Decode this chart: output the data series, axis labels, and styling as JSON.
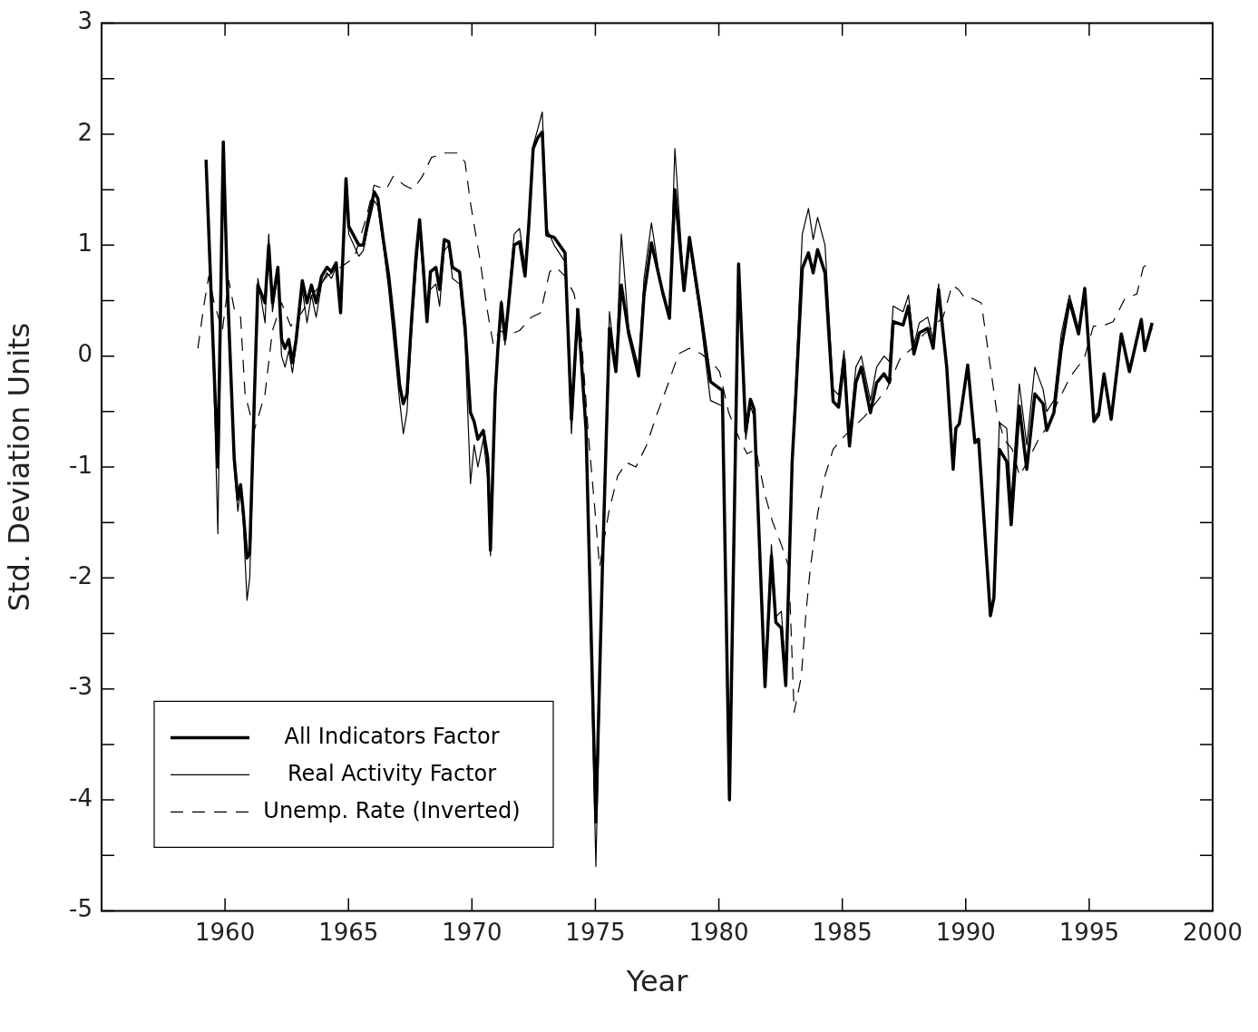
{
  "chart_data": {
    "type": "line",
    "xlabel": "Year",
    "ylabel": "Std. Deviation Units",
    "xlim": [
      1955,
      2000
    ],
    "xticks": [
      1960,
      1965,
      1970,
      1975,
      1980,
      1985,
      1990,
      1995,
      2000
    ],
    "ylim": [
      -5,
      3
    ],
    "yticks": [
      -5,
      {
        "value": -4.5,
        "label": null
      },
      -4,
      {
        "value": -3.5,
        "label": null
      },
      -3,
      {
        "value": -2.5,
        "label": null
      },
      -2,
      {
        "value": -1.5,
        "label": null
      },
      -1,
      {
        "value": -0.5,
        "label": null
      },
      0,
      {
        "value": 0.5,
        "label": null
      },
      1,
      {
        "value": 1.5,
        "label": null
      },
      2,
      {
        "value": 2.5,
        "label": null
      },
      3
    ],
    "grid": false,
    "legend": "bottom left",
    "marker": "none",
    "series": [
      {
        "name": "All Indicators Factor",
        "color": "#000000",
        "line_style": "solid",
        "x": [
          1959.23,
          1959.45,
          1959.71,
          1959.93,
          1960.08,
          1960.37,
          1960.52,
          1960.63,
          1960.74,
          1960.89,
          1961.0,
          1961.18,
          1961.33,
          1961.62,
          1961.77,
          1961.92,
          1962.14,
          1962.29,
          1962.43,
          1962.58,
          1962.73,
          1962.88,
          1963.13,
          1963.32,
          1963.5,
          1963.69,
          1963.91,
          1964.13,
          1964.31,
          1964.5,
          1964.68,
          1964.9,
          1965.01,
          1965.42,
          1965.6,
          1965.78,
          1966.04,
          1966.19,
          1966.41,
          1966.63,
          1966.85,
          1967.07,
          1967.22,
          1967.37,
          1967.55,
          1967.73,
          1967.88,
          1968.03,
          1968.18,
          1968.32,
          1968.54,
          1968.69,
          1968.88,
          1969.06,
          1969.21,
          1969.5,
          1969.72,
          1969.94,
          1970.09,
          1970.24,
          1970.46,
          1970.64,
          1970.75,
          1970.94,
          1971.05,
          1971.19,
          1971.34,
          1971.49,
          1971.71,
          1971.93,
          1972.15,
          1972.3,
          1972.48,
          1972.67,
          1972.85,
          1973.03,
          1973.33,
          1973.77,
          1974.03,
          1974.29,
          1974.62,
          1975.02,
          1975.28,
          1975.57,
          1975.83,
          1976.05,
          1976.35,
          1976.75,
          1976.97,
          1977.27,
          1977.71,
          1978.0,
          1978.22,
          1978.59,
          1978.81,
          1979.25,
          1979.66,
          1980.14,
          1980.43,
          1980.8,
          1981.09,
          1981.28,
          1981.43,
          1981.87,
          1982.13,
          1982.31,
          1982.53,
          1982.71,
          1982.97,
          1983.12,
          1983.38,
          1983.63,
          1983.82,
          1984.0,
          1984.3,
          1984.63,
          1984.85,
          1985.07,
          1985.29,
          1985.55,
          1985.77,
          1986.14,
          1986.39,
          1986.69,
          1986.91,
          1987.06,
          1987.46,
          1987.68,
          1987.9,
          1988.12,
          1988.46,
          1988.68,
          1988.9,
          1989.23,
          1989.49,
          1989.6,
          1989.74,
          1990.08,
          1990.37,
          1990.52,
          1991.0,
          1991.14,
          1991.36,
          1991.66,
          1991.84,
          1992.17,
          1992.47,
          1992.8,
          1993.13,
          1993.28,
          1993.57,
          1993.87,
          1994.2,
          1994.57,
          1994.82,
          1995.19,
          1995.38,
          1995.6,
          1995.89,
          1996.3,
          1996.63,
          1997.11,
          1997.25,
          1997.55
        ],
        "values": [
          1.77,
          0.48,
          -1.0,
          1.93,
          0.72,
          -0.92,
          -1.29,
          -1.16,
          -1.41,
          -1.82,
          -1.78,
          -0.43,
          0.64,
          0.48,
          1.0,
          0.48,
          0.8,
          0.15,
          0.07,
          0.15,
          -0.06,
          0.15,
          0.68,
          0.48,
          0.64,
          0.48,
          0.72,
          0.8,
          0.76,
          0.84,
          0.39,
          1.6,
          1.17,
          1.0,
          1.0,
          1.21,
          1.48,
          1.42,
          1.05,
          0.72,
          0.27,
          -0.26,
          -0.43,
          -0.34,
          0.31,
          0.89,
          1.23,
          0.8,
          0.31,
          0.76,
          0.8,
          0.6,
          1.05,
          1.03,
          0.8,
          0.76,
          0.27,
          -0.51,
          -0.59,
          -0.75,
          -0.67,
          -0.92,
          -1.75,
          -0.34,
          0.07,
          0.48,
          0.15,
          0.48,
          1.0,
          1.03,
          0.72,
          1.17,
          1.87,
          1.97,
          2.02,
          1.09,
          1.07,
          0.93,
          -0.57,
          0.42,
          -0.66,
          -4.2,
          -1.95,
          0.25,
          -0.14,
          0.64,
          0.2,
          -0.18,
          0.55,
          1.02,
          0.59,
          0.34,
          1.5,
          0.59,
          1.07,
          0.42,
          -0.23,
          -0.31,
          -4.0,
          0.83,
          -0.68,
          -0.39,
          -0.48,
          -2.98,
          -1.8,
          -2.4,
          -2.45,
          -2.97,
          -0.95,
          -0.34,
          0.79,
          0.93,
          0.75,
          0.96,
          0.75,
          -0.41,
          -0.46,
          -0.03,
          -0.81,
          -0.24,
          -0.1,
          -0.51,
          -0.24,
          -0.16,
          -0.24,
          0.31,
          0.28,
          0.45,
          0.02,
          0.21,
          0.25,
          0.07,
          0.6,
          -0.1,
          -1.02,
          -0.65,
          -0.61,
          -0.08,
          -0.78,
          -0.75,
          -2.34,
          -2.18,
          -0.84,
          -0.95,
          -1.52,
          -0.45,
          -1.02,
          -0.34,
          -0.43,
          -0.67,
          -0.51,
          0.07,
          0.5,
          0.2,
          0.61,
          -0.59,
          -0.53,
          -0.16,
          -0.57,
          0.2,
          -0.14,
          0.33,
          0.05,
          0.3
        ]
      },
      {
        "name": "Real Activity Factor",
        "color": "#000000",
        "line_style": "solid",
        "x": [
          1959.23,
          1959.45,
          1959.71,
          1959.93,
          1960.08,
          1960.37,
          1960.52,
          1960.63,
          1960.74,
          1960.89,
          1961.0,
          1961.18,
          1961.33,
          1961.62,
          1961.77,
          1961.92,
          1962.14,
          1962.29,
          1962.43,
          1962.58,
          1962.73,
          1962.88,
          1963.13,
          1963.32,
          1963.5,
          1963.69,
          1963.91,
          1964.13,
          1964.31,
          1964.5,
          1964.68,
          1964.9,
          1965.01,
          1965.42,
          1965.6,
          1965.78,
          1966.04,
          1966.19,
          1966.41,
          1966.63,
          1966.85,
          1967.07,
          1967.22,
          1967.37,
          1967.55,
          1967.73,
          1967.88,
          1968.03,
          1968.18,
          1968.32,
          1968.54,
          1968.69,
          1968.88,
          1969.06,
          1969.21,
          1969.5,
          1969.72,
          1969.94,
          1970.09,
          1970.24,
          1970.46,
          1970.64,
          1970.75,
          1970.94,
          1971.05,
          1971.19,
          1971.34,
          1971.49,
          1971.71,
          1971.93,
          1972.15,
          1972.3,
          1972.48,
          1972.67,
          1972.85,
          1973.03,
          1973.33,
          1973.77,
          1974.03,
          1974.29,
          1974.62,
          1975.02,
          1975.28,
          1975.57,
          1975.83,
          1976.05,
          1976.35,
          1976.75,
          1976.97,
          1977.27,
          1977.71,
          1978.0,
          1978.22,
          1978.59,
          1978.81,
          1979.25,
          1979.66,
          1980.14,
          1980.43,
          1980.8,
          1981.09,
          1981.28,
          1981.43,
          1981.87,
          1982.13,
          1982.31,
          1982.53,
          1982.71,
          1982.97,
          1983.12,
          1983.38,
          1983.63,
          1983.82,
          1984.0,
          1984.3,
          1984.63,
          1984.85,
          1985.07,
          1985.29,
          1985.55,
          1985.77,
          1986.14,
          1986.39,
          1986.69,
          1986.91,
          1987.06,
          1987.46,
          1987.68,
          1987.9,
          1988.12,
          1988.46,
          1988.68,
          1988.9,
          1989.23,
          1989.49,
          1989.6,
          1989.74,
          1990.08,
          1990.37,
          1990.52,
          1991.0,
          1991.14,
          1991.36,
          1991.66,
          1991.84,
          1992.17,
          1992.47,
          1992.8,
          1993.13,
          1993.28,
          1993.57,
          1993.87,
          1994.2,
          1994.57,
          1994.82,
          1995.19,
          1995.38,
          1995.6,
          1995.89,
          1996.3,
          1996.63,
          1997.11,
          1997.25,
          1997.55
        ],
        "values": [
          1.7,
          0.6,
          -1.6,
          1.85,
          0.6,
          -1.0,
          -1.4,
          -1.2,
          -1.5,
          -2.2,
          -2.0,
          -0.6,
          0.7,
          0.3,
          1.1,
          0.4,
          0.75,
          0.0,
          -0.1,
          0.05,
          -0.15,
          0.1,
          0.6,
          0.3,
          0.55,
          0.35,
          0.65,
          0.75,
          0.7,
          0.8,
          0.45,
          1.5,
          1.1,
          0.9,
          0.95,
          1.15,
          1.4,
          1.35,
          1.0,
          0.6,
          0.1,
          -0.4,
          -0.7,
          -0.5,
          0.2,
          0.75,
          1.15,
          0.7,
          0.45,
          0.6,
          0.65,
          0.45,
          0.95,
          1.0,
          0.7,
          0.65,
          0.15,
          -1.15,
          -0.8,
          -1.0,
          -0.75,
          -1.1,
          -1.8,
          -0.5,
          0.1,
          0.5,
          0.1,
          0.55,
          1.1,
          1.15,
          0.8,
          1.25,
          1.9,
          2.05,
          2.2,
          1.15,
          1.0,
          0.85,
          -0.7,
          0.35,
          -0.7,
          -4.6,
          -2.0,
          0.4,
          -0.1,
          1.1,
          0.25,
          -0.1,
          0.7,
          1.2,
          0.55,
          0.4,
          1.87,
          0.6,
          1.0,
          0.35,
          -0.4,
          -0.45,
          -3.9,
          0.75,
          -0.75,
          -0.45,
          -0.55,
          -2.9,
          -1.7,
          -2.35,
          -2.3,
          -2.85,
          -0.9,
          -0.2,
          1.1,
          1.33,
          1.05,
          1.25,
          1.0,
          -0.3,
          -0.35,
          0.05,
          -0.7,
          -0.1,
          0.0,
          -0.4,
          -0.1,
          0.0,
          -0.05,
          0.45,
          0.4,
          0.55,
          0.1,
          0.3,
          0.35,
          0.15,
          0.65,
          -0.1,
          -1.0,
          -0.65,
          -0.6,
          -0.1,
          -0.75,
          -0.75,
          -2.3,
          -2.15,
          -0.6,
          -0.65,
          -1.3,
          -0.25,
          -0.8,
          -0.1,
          -0.3,
          -0.5,
          -0.4,
          0.2,
          0.55,
          0.25,
          0.6,
          -0.55,
          -0.5,
          -0.2,
          -0.55,
          0.15,
          -0.1,
          0.3,
          0.1,
          0.25
        ]
      },
      {
        "name": "Unemp. Rate (Inverted)",
        "color": "#000000",
        "line_style": "dashed",
        "x": [
          1958.9,
          1959.16,
          1959.34,
          1959.56,
          1959.89,
          1960.15,
          1960.37,
          1960.63,
          1960.81,
          1961.18,
          1961.62,
          1961.92,
          1962.29,
          1962.66,
          1963.1,
          1963.57,
          1964.13,
          1964.68,
          1965.24,
          1965.72,
          1966.04,
          1966.52,
          1966.81,
          1967.26,
          1967.62,
          1967.99,
          1968.36,
          1968.91,
          1969.39,
          1969.72,
          1969.94,
          1970.31,
          1970.64,
          1970.86,
          1971.12,
          1971.49,
          1971.93,
          1972.41,
          1972.78,
          1973.15,
          1973.41,
          1973.77,
          1974.14,
          1974.44,
          1974.73,
          1974.99,
          1975.17,
          1975.54,
          1975.9,
          1976.27,
          1976.64,
          1977.08,
          1977.45,
          1977.93,
          1978.37,
          1978.81,
          1979.29,
          1979.73,
          1980.03,
          1980.4,
          1980.84,
          1981.14,
          1981.5,
          1981.87,
          1982.17,
          1982.53,
          1982.83,
          1983.05,
          1983.34,
          1983.53,
          1983.71,
          1984.01,
          1984.3,
          1984.63,
          1984.96,
          1985.32,
          1985.88,
          1986.32,
          1986.8,
          1987.35,
          1987.83,
          1988.27,
          1988.71,
          1989.08,
          1989.45,
          1989.71,
          1989.97,
          1990.26,
          1990.63,
          1991.0,
          1991.26,
          1991.55,
          1991.88,
          1992.18,
          1992.57,
          1992.95,
          1993.32,
          1993.69,
          1994.25,
          1994.8,
          1995.17,
          1995.53,
          1995.97,
          1996.45,
          1996.93,
          1997.19,
          1997.44
        ],
        "values": [
          0.07,
          0.48,
          0.72,
          0.48,
          0.23,
          0.68,
          0.43,
          0.35,
          -0.34,
          -0.67,
          -0.34,
          0.23,
          0.48,
          0.27,
          0.39,
          0.56,
          0.72,
          0.8,
          0.89,
          1.25,
          1.54,
          1.5,
          1.62,
          1.54,
          1.5,
          1.62,
          1.79,
          1.83,
          1.83,
          1.75,
          1.38,
          0.89,
          0.39,
          0.11,
          0.23,
          0.19,
          0.23,
          0.35,
          0.39,
          0.76,
          0.8,
          0.72,
          0.56,
          0.15,
          -0.75,
          -1.41,
          -1.9,
          -1.41,
          -1.08,
          -0.96,
          -1.0,
          -0.8,
          -0.55,
          -0.26,
          0.02,
          0.07,
          0.02,
          -0.06,
          -0.14,
          -0.51,
          -0.75,
          -0.88,
          -0.84,
          -1.25,
          -1.49,
          -1.7,
          -1.9,
          -3.21,
          -2.89,
          -2.31,
          -1.9,
          -1.41,
          -1.08,
          -0.84,
          -0.75,
          -0.67,
          -0.55,
          -0.43,
          -0.3,
          -0.02,
          0.07,
          0.19,
          0.27,
          0.35,
          0.64,
          0.6,
          0.52,
          0.52,
          0.48,
          -0.1,
          -0.51,
          -0.75,
          -0.84,
          -1.08,
          -0.92,
          -0.75,
          -0.63,
          -0.43,
          -0.18,
          -0.02,
          0.27,
          0.27,
          0.31,
          0.52,
          0.56,
          0.8,
          0.84
        ]
      }
    ]
  }
}
